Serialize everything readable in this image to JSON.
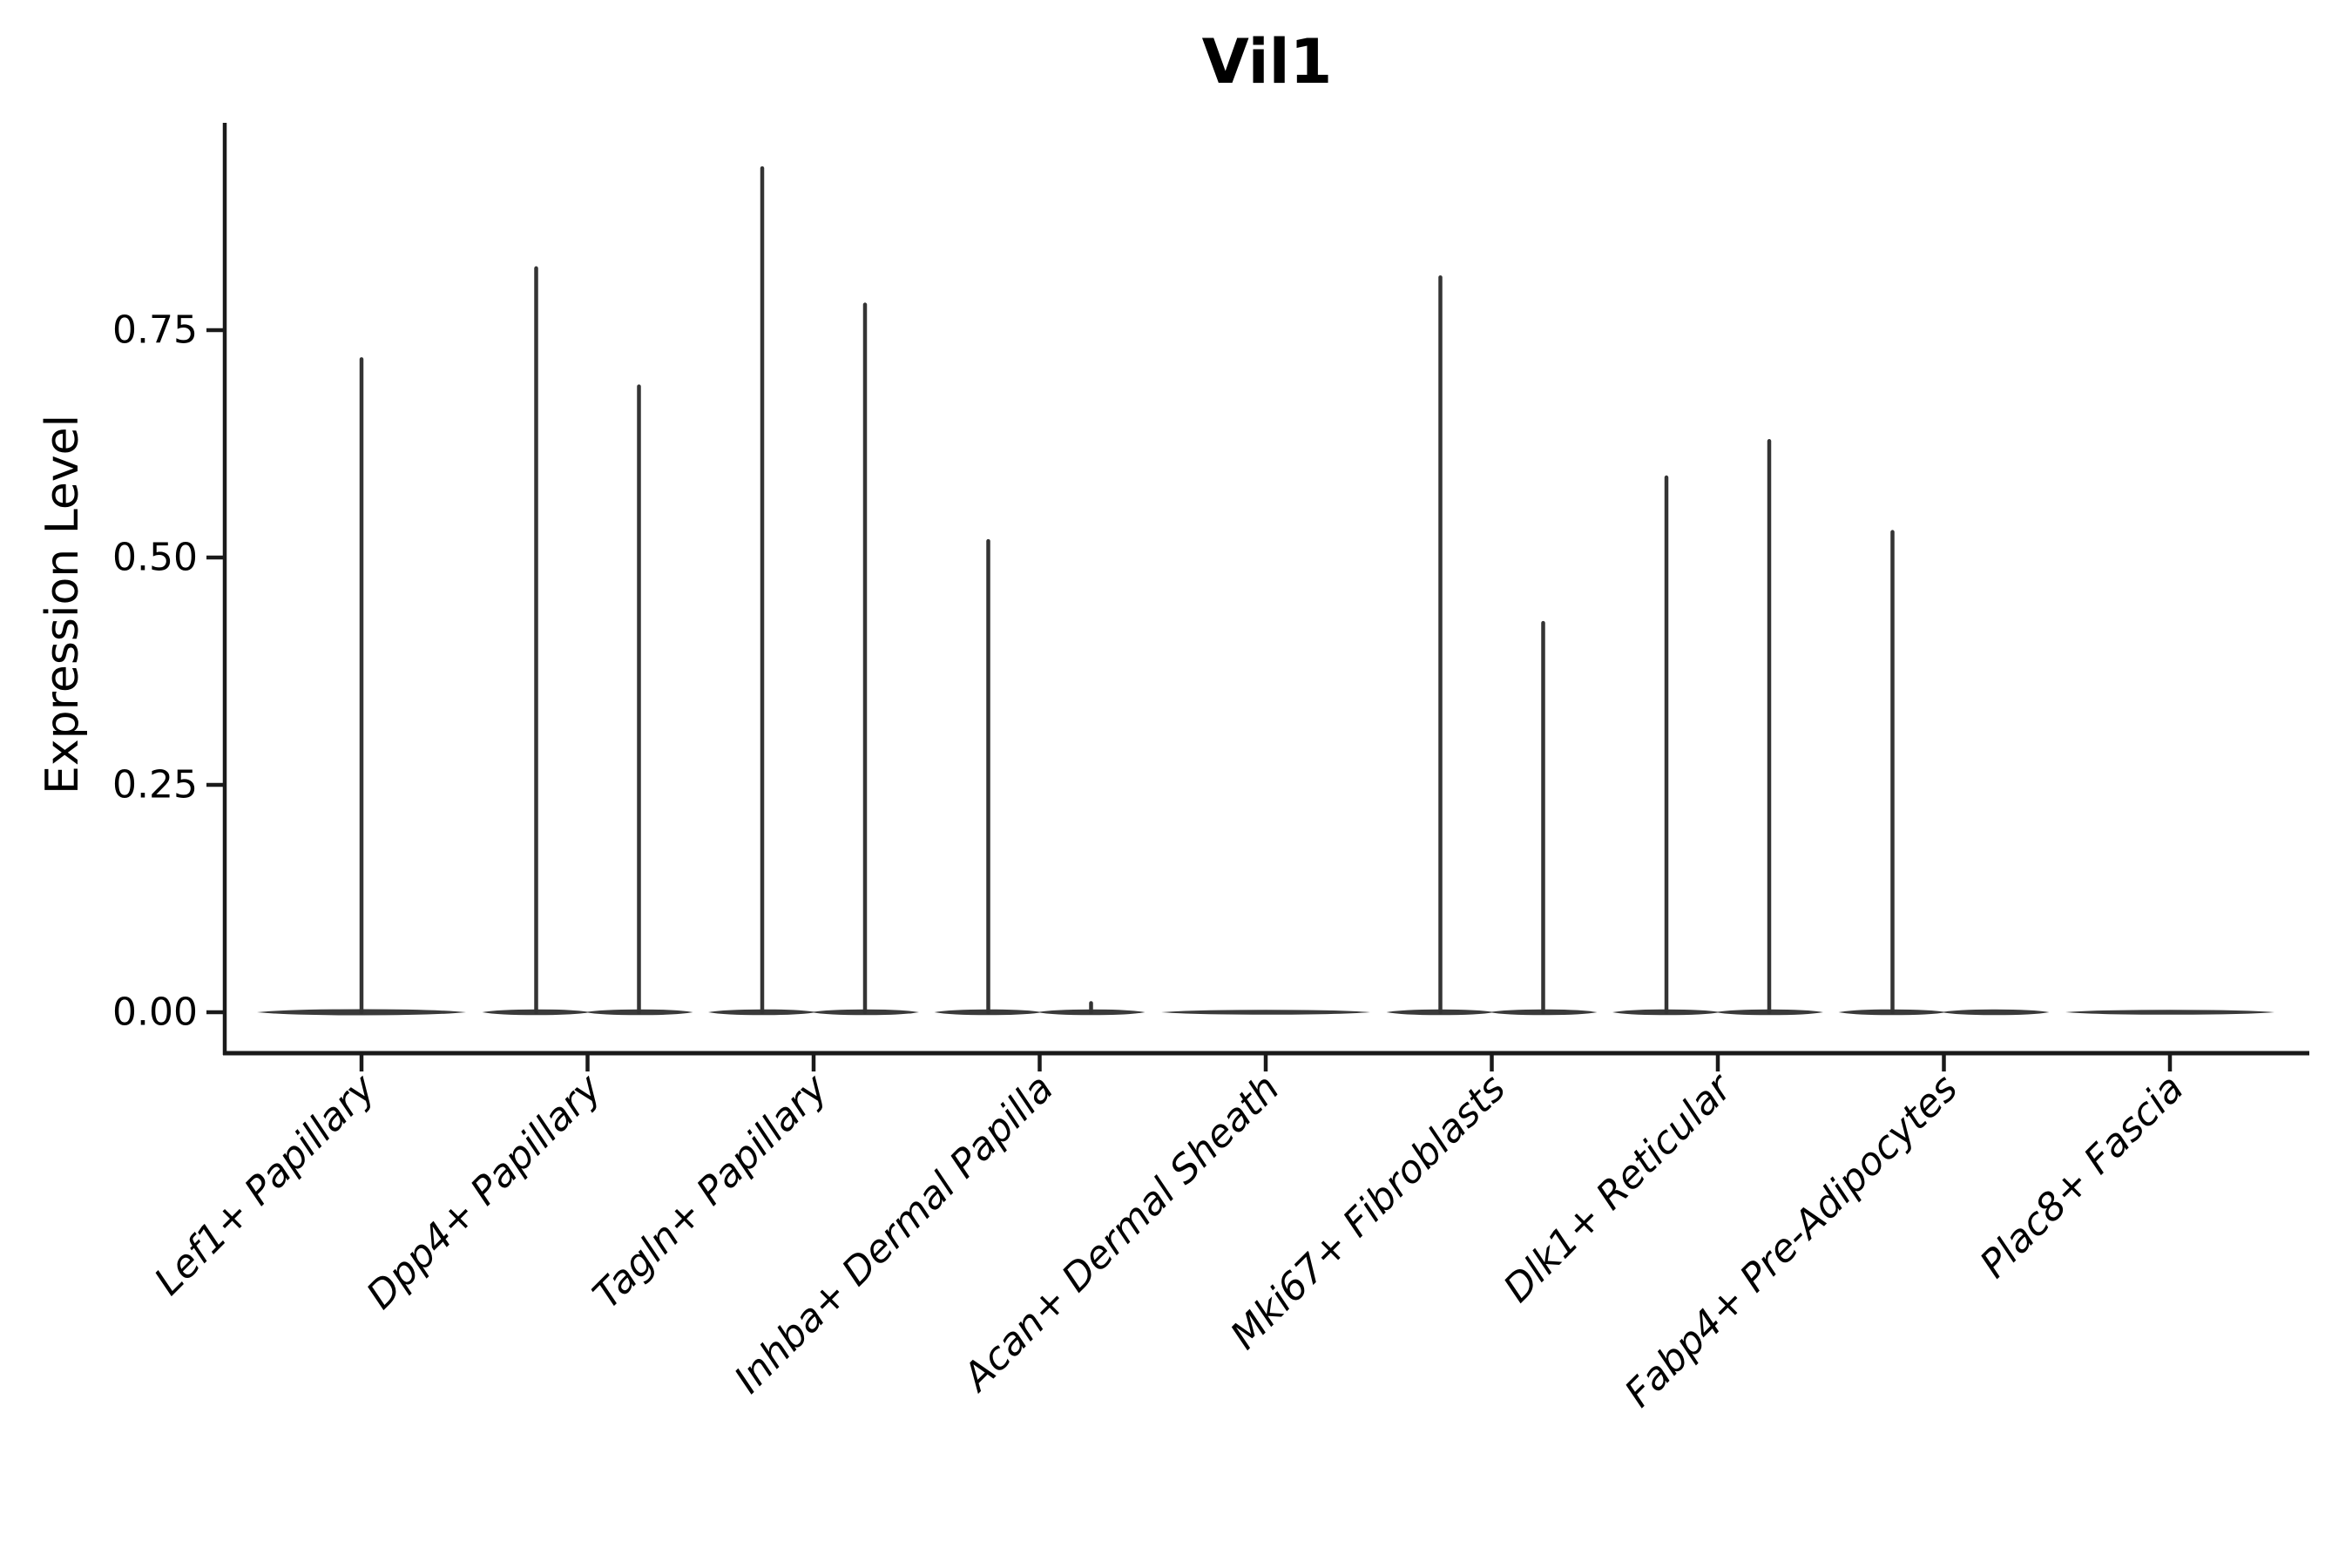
{
  "title": "Vil1",
  "colors": {
    "axis": "#1a1a1a",
    "text": "#000000",
    "violin": "#3a3a3a",
    "spike": "#343434",
    "background": "#ffffff"
  },
  "y_axis": {
    "label": "Expression Level",
    "ticks": [
      "0.00",
      "0.25",
      "0.50",
      "0.75"
    ],
    "tick_values": [
      0.0,
      0.25,
      0.5,
      0.75
    ]
  },
  "chart_data": {
    "type": "violin",
    "title": "Vil1",
    "xlabel": "",
    "ylabel": "Expression Level",
    "ylim": [
      0,
      0.98
    ],
    "grid": false,
    "legend": "none",
    "categories": [
      "Lef1+ Papillary",
      "Dpp4+ Papillary",
      "Tagln+ Papillary",
      "Inhba+ Dermal Papilla",
      "Acan+ Dermal Sheath",
      "Mki67+ Fibroblasts",
      "Dlk1+ Reticular",
      "Fabp4+ Pre-Adipocytes",
      "Plac8+ Fascia"
    ],
    "violins": [
      {
        "category": "Lef1+ Papillary",
        "sub": [
          {
            "pos": "center",
            "max": 0.72
          }
        ]
      },
      {
        "category": "Dpp4+ Papillary",
        "sub": [
          {
            "pos": "left",
            "max": 0.82
          },
          {
            "pos": "right",
            "max": 0.69
          }
        ]
      },
      {
        "category": "Tagln+ Papillary",
        "sub": [
          {
            "pos": "left",
            "max": 0.93
          },
          {
            "pos": "right",
            "max": 0.78
          }
        ]
      },
      {
        "category": "Inhba+ Dermal Papilla",
        "sub": [
          {
            "pos": "left",
            "max": 0.52
          },
          {
            "pos": "right",
            "max": 0.012
          }
        ]
      },
      {
        "category": "Acan+ Dermal Sheath",
        "sub": []
      },
      {
        "category": "Mki67+ Fibroblasts",
        "sub": [
          {
            "pos": "left",
            "max": 0.81
          },
          {
            "pos": "right",
            "max": 0.43
          }
        ]
      },
      {
        "category": "Dlk1+ Reticular",
        "sub": [
          {
            "pos": "left",
            "max": 0.59
          },
          {
            "pos": "right",
            "max": 0.63
          }
        ]
      },
      {
        "category": "Fabp4+ Pre-Adipocytes",
        "sub": [
          {
            "pos": "left",
            "max": 0.53
          }
        ]
      },
      {
        "category": "Plac8+ Fascia",
        "sub": []
      }
    ],
    "baseline_note": "all violins have dense mass at expression 0 (flat horizontal lens at y=0); spikes mark sparse expressing cells up to listed max"
  }
}
